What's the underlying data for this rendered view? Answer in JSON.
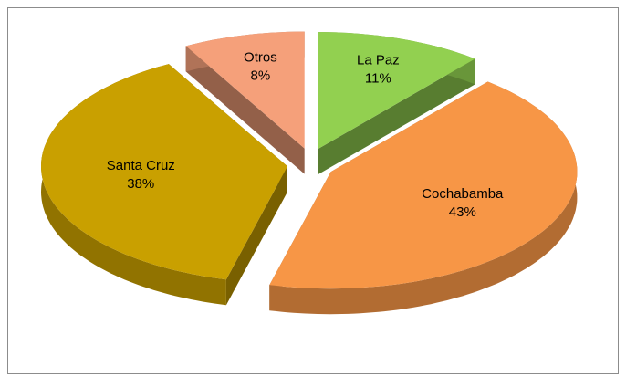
{
  "chart_data": {
    "type": "pie",
    "categories": [
      "La Paz",
      "Cochabamba",
      "Santa Cruz",
      "Otros"
    ],
    "values": [
      11,
      43,
      38,
      8
    ],
    "value_labels": [
      "11%",
      "43%",
      "38%",
      "8%"
    ],
    "colors": [
      "#92d050",
      "#f79646",
      "#c9a000",
      "#f5a07a"
    ]
  }
}
